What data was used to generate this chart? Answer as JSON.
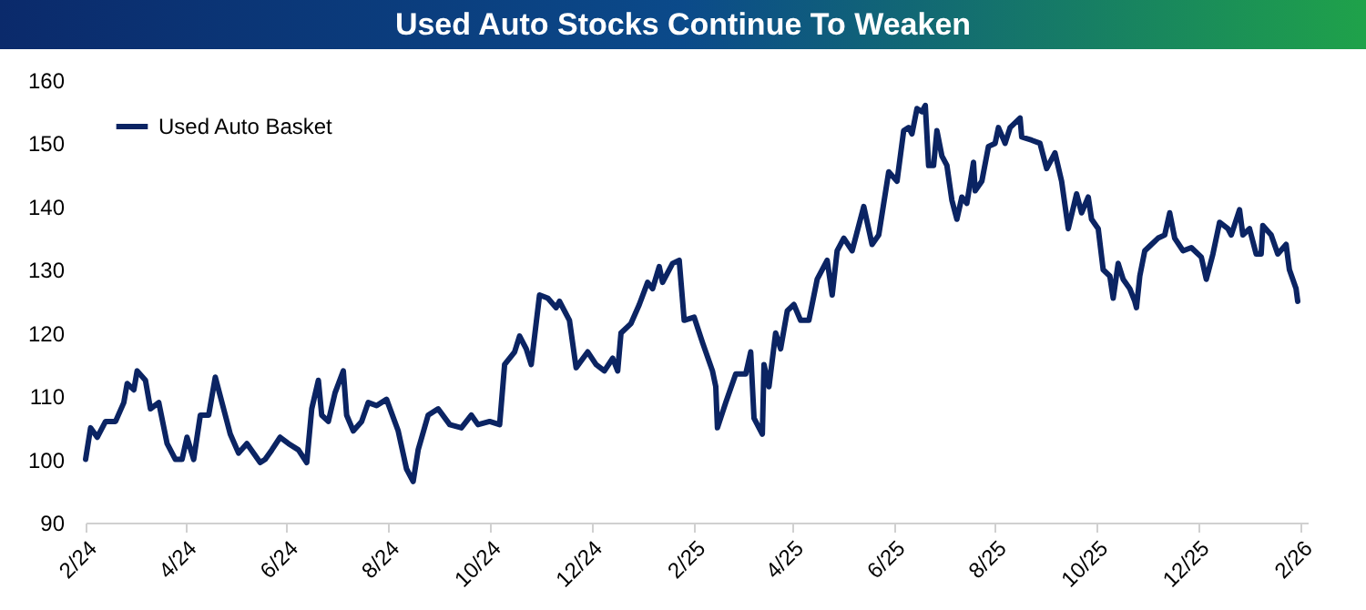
{
  "chart_data": {
    "type": "line",
    "title": "Used Auto Stocks Continue To Weaken",
    "x": [
      "2024-02-01",
      "2024-02-04",
      "2024-02-08",
      "2024-02-13",
      "2024-02-19",
      "2024-02-24",
      "2024-02-26",
      "2024-03-01",
      "2024-03-03",
      "2024-03-08",
      "2024-03-11",
      "2024-03-16",
      "2024-03-21",
      "2024-03-26",
      "2024-03-30",
      "2024-04-02",
      "2024-04-06",
      "2024-04-10",
      "2024-04-15",
      "2024-04-19",
      "2024-04-24",
      "2024-04-28",
      "2024-05-03",
      "2024-05-08",
      "2024-05-16",
      "2024-05-19",
      "2024-05-23",
      "2024-05-28",
      "2024-06-02",
      "2024-06-08",
      "2024-06-13",
      "2024-06-16",
      "2024-06-20",
      "2024-06-22",
      "2024-06-26",
      "2024-06-30",
      "2024-07-05",
      "2024-07-07",
      "2024-07-11",
      "2024-07-16",
      "2024-07-20",
      "2024-07-25",
      "2024-07-31",
      "2024-08-07",
      "2024-08-12",
      "2024-08-16",
      "2024-08-19",
      "2024-08-25",
      "2024-08-31",
      "2024-09-07",
      "2024-09-14",
      "2024-09-20",
      "2024-09-24",
      "2024-10-01",
      "2024-10-07",
      "2024-10-10",
      "2024-10-16",
      "2024-10-19",
      "2024-10-23",
      "2024-10-26",
      "2024-10-31",
      "2024-11-05",
      "2024-11-10",
      "2024-11-12",
      "2024-11-18",
      "2024-11-22",
      "2024-11-29",
      "2024-12-04",
      "2024-12-09",
      "2024-12-14",
      "2024-12-17",
      "2024-12-19",
      "2024-12-25",
      "2024-12-30",
      "2025-01-04",
      "2025-01-07",
      "2025-01-11",
      "2025-01-13",
      "2025-01-19",
      "2025-01-23",
      "2025-01-26",
      "2025-02-01",
      "2025-02-06",
      "2025-02-12",
      "2025-02-14",
      "2025-02-15",
      "2025-02-20",
      "2025-02-26",
      "2025-03-04",
      "2025-03-07",
      "2025-03-09",
      "2025-03-14",
      "2025-03-15",
      "2025-03-18",
      "2025-03-22",
      "2025-03-25",
      "2025-03-29",
      "2025-04-02",
      "2025-04-06",
      "2025-04-11",
      "2025-04-16",
      "2025-04-22",
      "2025-04-25",
      "2025-04-28",
      "2025-05-02",
      "2025-05-07",
      "2025-05-14",
      "2025-05-19",
      "2025-05-23",
      "2025-05-29",
      "2025-06-03",
      "2025-06-07",
      "2025-06-10",
      "2025-06-12",
      "2025-06-15",
      "2025-06-18",
      "2025-06-20",
      "2025-06-22",
      "2025-06-25",
      "2025-06-27",
      "2025-06-30",
      "2025-07-03",
      "2025-07-06",
      "2025-07-09",
      "2025-07-12",
      "2025-07-15",
      "2025-07-19",
      "2025-07-20",
      "2025-07-24",
      "2025-07-28",
      "2025-08-01",
      "2025-08-03",
      "2025-08-07",
      "2025-08-10",
      "2025-08-16",
      "2025-08-17",
      "2025-08-23",
      "2025-08-28",
      "2025-09-01",
      "2025-09-06",
      "2025-09-10",
      "2025-09-14",
      "2025-09-19",
      "2025-09-22",
      "2025-09-26",
      "2025-09-28",
      "2025-10-02",
      "2025-10-05",
      "2025-10-09",
      "2025-10-11",
      "2025-10-14",
      "2025-10-17",
      "2025-10-21",
      "2025-10-24",
      "2025-10-25",
      "2025-10-27",
      "2025-10-30",
      "2025-11-03",
      "2025-11-07",
      "2025-11-11",
      "2025-11-14",
      "2025-11-17",
      "2025-11-22",
      "2025-11-27",
      "2025-12-03",
      "2025-12-06",
      "2025-12-10",
      "2025-12-14",
      "2025-12-19",
      "2025-12-21",
      "2025-12-26",
      "2025-12-28",
      "2026-01-01",
      "2026-01-05",
      "2026-01-08",
      "2026-01-09",
      "2026-01-14",
      "2026-01-18",
      "2026-01-23",
      "2026-01-25",
      "2026-01-29",
      "2026-01-30"
    ],
    "series": [
      {
        "name": "Used Auto Basket",
        "color": "#0b2463",
        "values": [
          100,
          105,
          103.5,
          106,
          106,
          109,
          112,
          111,
          114,
          112.5,
          108,
          109,
          102.5,
          100,
          100,
          103.5,
          100,
          107,
          107,
          113,
          108,
          104,
          101,
          102.5,
          99.5,
          100,
          101.5,
          103.5,
          102.5,
          101.5,
          99.5,
          108,
          112.5,
          107,
          106,
          110.5,
          114,
          107,
          104.5,
          106,
          109,
          108.5,
          109.5,
          104.5,
          98.5,
          96.5,
          101.5,
          107,
          108,
          105.5,
          105,
          107,
          105.5,
          106,
          105.5,
          115,
          117,
          119.5,
          117.5,
          115,
          126,
          125.5,
          124,
          125,
          122,
          114.5,
          117,
          115,
          114,
          116,
          114,
          120,
          121.5,
          124.5,
          128,
          127,
          130.5,
          128,
          131,
          131.5,
          122,
          122.5,
          118.5,
          114,
          111.5,
          105,
          109,
          113.5,
          113.5,
          117,
          106.5,
          104,
          115,
          111.5,
          120,
          117.5,
          123.5,
          124.5,
          122,
          122,
          128.5,
          131.5,
          126,
          133,
          135,
          133,
          140,
          134,
          135.5,
          145.5,
          144,
          152,
          152.5,
          151.5,
          155.5,
          155,
          156,
          146.5,
          146.5,
          152,
          148,
          146.5,
          141,
          138,
          141.5,
          140.5,
          147,
          142.5,
          144,
          149.5,
          150,
          152.5,
          150,
          152.5,
          154,
          151,
          150.5,
          150,
          146,
          148.5,
          144,
          136.5,
          142,
          139,
          141.5,
          138,
          136.5,
          130,
          129,
          125.5,
          131,
          128.5,
          127,
          125,
          124,
          129,
          133,
          134,
          135,
          135.5,
          139,
          135,
          133,
          133.5,
          132,
          128.5,
          132.5,
          137.5,
          136.5,
          135.5,
          139.5,
          135.5,
          136.5,
          132.5,
          132.5,
          137,
          135.5,
          132.5,
          134,
          130,
          127,
          125
        ]
      }
    ],
    "xlim": [
      "2024-02-01",
      "2026-02-05"
    ],
    "xticks": [
      {
        "value": "2024-02-01",
        "label": "2/24"
      },
      {
        "value": "2024-04-01",
        "label": "4/24"
      },
      {
        "value": "2024-06-01",
        "label": "6/24"
      },
      {
        "value": "2024-08-01",
        "label": "8/24"
      },
      {
        "value": "2024-10-01",
        "label": "10/24"
      },
      {
        "value": "2024-12-01",
        "label": "12/24"
      },
      {
        "value": "2025-02-01",
        "label": "2/25"
      },
      {
        "value": "2025-04-01",
        "label": "4/25"
      },
      {
        "value": "2025-06-01",
        "label": "6/25"
      },
      {
        "value": "2025-08-01",
        "label": "8/25"
      },
      {
        "value": "2025-10-01",
        "label": "10/25"
      },
      {
        "value": "2025-12-01",
        "label": "12/25"
      },
      {
        "value": "2026-02-01",
        "label": "2/26"
      }
    ],
    "ylim": [
      90,
      160
    ],
    "yticks": [
      90,
      100,
      110,
      120,
      130,
      140,
      150,
      160
    ],
    "legend": "top left",
    "grid": false
  }
}
